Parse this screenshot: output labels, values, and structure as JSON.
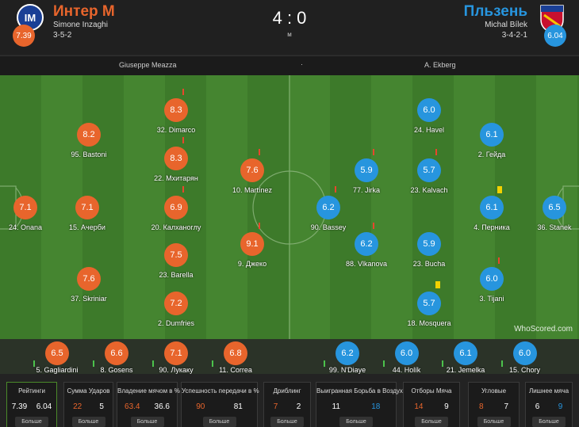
{
  "header": {
    "home": {
      "name": "Интер М",
      "manager": "Simone Inzaghi",
      "formation": "3-5-2",
      "rating": "7.39"
    },
    "score": "4 : 0",
    "status": "м",
    "away": {
      "name": "Пльзень",
      "manager": "Michal Bílek",
      "formation": "3-4-2-1",
      "rating": "6.04"
    }
  },
  "info": {
    "stadium": "Giuseppe Meazza",
    "separator": "·",
    "referee": "A. Ekberg"
  },
  "lineups": {
    "home": [
      {
        "label": "24. Onana",
        "rating": "7.1"
      },
      {
        "label": "15. Ачерби",
        "rating": "7.1"
      },
      {
        "label": "95. Bastoni",
        "rating": "8.2"
      },
      {
        "label": "37. Skriniar",
        "rating": "7.6"
      },
      {
        "label": "32. Dimarco",
        "rating": "8.3"
      },
      {
        "label": "22. Мхитарян",
        "rating": "8.3"
      },
      {
        "label": "20. Калханоглу",
        "rating": "6.9"
      },
      {
        "label": "23. Barella",
        "rating": "7.5"
      },
      {
        "label": "2. Dumfries",
        "rating": "7.2"
      },
      {
        "label": "10. Martínez",
        "rating": "7.6"
      },
      {
        "label": "9. Джеко",
        "rating": "9.1"
      }
    ],
    "away": [
      {
        "label": "24. Havel",
        "rating": "6.0"
      },
      {
        "label": "2. Гейда",
        "rating": "6.1"
      },
      {
        "label": "77. Jirka",
        "rating": "5.9"
      },
      {
        "label": "23. Kalvach",
        "rating": "5.7"
      },
      {
        "label": "90. Bassey",
        "rating": "6.2"
      },
      {
        "label": "4. Перника",
        "rating": "6.1"
      },
      {
        "label": "36. Stanek",
        "rating": "6.5"
      },
      {
        "label": "88. Vlkanova",
        "rating": "6.2"
      },
      {
        "label": "23. Bucha",
        "rating": "5.9"
      },
      {
        "label": "3. Tijani",
        "rating": "6.0"
      },
      {
        "label": "18. Mosquera",
        "rating": "5.7"
      }
    ]
  },
  "subs": {
    "home": [
      {
        "label": "5. Gagliardini",
        "rating": "6.5"
      },
      {
        "label": "8. Gosens",
        "rating": "6.6"
      },
      {
        "label": "90. Лукаку",
        "rating": "7.1"
      },
      {
        "label": "11. Correa",
        "rating": "6.8"
      }
    ],
    "away": [
      {
        "label": "99. N'Diaye",
        "rating": "6.2"
      },
      {
        "label": "44. Holík",
        "rating": "6.0"
      },
      {
        "label": "21. Jemelka",
        "rating": "6.1"
      },
      {
        "label": "15. Chory",
        "rating": "6.0"
      }
    ]
  },
  "watermark": "WhoScored.com",
  "stats": [
    {
      "title": "Рейтинги",
      "home": "7.39",
      "away": "6.04",
      "button": "Больше"
    },
    {
      "title": "Сумма Ударов",
      "home": "22",
      "away": "5",
      "button": "Больше"
    },
    {
      "title": "Владение мячом в %",
      "home": "63.4",
      "away": "36.6",
      "button": "Больше"
    },
    {
      "title": "Успешность передачи в %",
      "home": "90",
      "away": "81",
      "button": "Больше"
    },
    {
      "title": "Дриблинг",
      "home": "7",
      "away": "2",
      "button": "Больше"
    },
    {
      "title": "Выигранная Борьба в Воздухе",
      "home": "11",
      "away": "18",
      "button": "Больше"
    },
    {
      "title": "Отборы Мяча",
      "home": "14",
      "away": "9",
      "button": "Больше"
    },
    {
      "title": "Угловые",
      "home": "8",
      "away": "7",
      "button": "Больше"
    },
    {
      "title": "Лишнее мяча",
      "home": "6",
      "away": "9",
      "button": "Больше"
    }
  ]
}
